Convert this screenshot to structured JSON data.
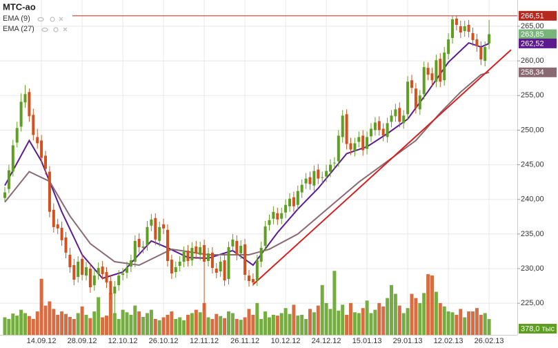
{
  "chart_data": {
    "type": "candlestick",
    "title": "МТС-ао",
    "categories": [
      null,
      null,
      null,
      null,
      null,
      null,
      null,
      null,
      null,
      "14.09.12",
      null,
      null,
      null,
      null,
      null,
      null,
      null,
      null,
      null,
      "28.09.12",
      null,
      null,
      null,
      null,
      null,
      null,
      null,
      null,
      null,
      "12.10.12",
      null,
      null,
      null,
      null,
      null,
      null,
      null,
      null,
      null,
      "26.10.12",
      null,
      null,
      null,
      null,
      null,
      null,
      null,
      null,
      null,
      "12.11.12",
      null,
      null,
      null,
      null,
      null,
      null,
      null,
      null,
      null,
      "26.11.12",
      null,
      null,
      null,
      null,
      null,
      null,
      null,
      null,
      null,
      "10.12.12",
      null,
      null,
      null,
      null,
      null,
      null,
      null,
      null,
      null,
      "24.12.12",
      null,
      null,
      null,
      null,
      null,
      null,
      null,
      null,
      null,
      "15.01.13",
      null,
      null,
      null,
      null,
      null,
      null,
      null,
      null,
      null,
      "29.01.13",
      null,
      null,
      null,
      null,
      null,
      null,
      null,
      null,
      null,
      "12.02.13",
      null,
      null,
      null,
      null,
      null,
      null,
      null,
      null,
      null,
      "26.02.13"
    ],
    "open": [
      240.2,
      241.5,
      244.0,
      248.2,
      250.5,
      254.0,
      255.5,
      252.2,
      249.0,
      248.5,
      246.3,
      244.0,
      238.5,
      236.4,
      235.9,
      234.5,
      232.0,
      230.5,
      228.8,
      231.4,
      229.0,
      230.0,
      227.6,
      229.2,
      230.3,
      229.5,
      228.2,
      226.4,
      227.6,
      229.1,
      229.4,
      230.3,
      231.0,
      234.3,
      233.0,
      233.4,
      236.2,
      237.3,
      234.0,
      236.4,
      235.6,
      231.3,
      229.5,
      230.4,
      231.0,
      232.6,
      231.2,
      233.2,
      232.0,
      233.4,
      231.1,
      232.3,
      230.0,
      229.6,
      231.2,
      228.5,
      233.2,
      234.0,
      232.2,
      233.5,
      229.0,
      228.5,
      228.3,
      231.0,
      233.3,
      236.3,
      237.2,
      238.0,
      237.2,
      238.1,
      239.0,
      240.3,
      239.2,
      241.0,
      242.3,
      243.2,
      242.0,
      244.3,
      243.1,
      243.3,
      244.0,
      245.2,
      245.5,
      249.0,
      252.3,
      248.1,
      247.0,
      248.3,
      249.2,
      247.3,
      249.1,
      250.0,
      251.3,
      250.2,
      249.0,
      251.2,
      252.0,
      253.2,
      251.0,
      252.3,
      257.2,
      256.0,
      253.0,
      255.2,
      259.0,
      258.2,
      257.0,
      260.3,
      257.2,
      261.0,
      263.3,
      266.1,
      265.0,
      264.3,
      265.2,
      264.0,
      263.1,
      262.0,
      260.0,
      262.5
    ],
    "high": [
      241.8,
      245.0,
      248.6,
      251.2,
      255.3,
      256.5,
      256.0,
      253.1,
      250.2,
      249.3,
      247.0,
      244.8,
      239.4,
      237.2,
      236.8,
      235.3,
      233.0,
      231.4,
      231.8,
      232.0,
      231.0,
      230.8,
      229.8,
      230.9,
      231.1,
      230.2,
      229.0,
      228.2,
      229.8,
      230.1,
      231.0,
      232.0,
      234.8,
      235.1,
      234.0,
      236.9,
      237.9,
      238.0,
      236.8,
      237.2,
      236.4,
      232.0,
      231.0,
      231.8,
      233.2,
      233.4,
      233.8,
      234.0,
      233.9,
      234.2,
      233.0,
      233.1,
      230.8,
      231.8,
      232.0,
      233.9,
      235.0,
      234.8,
      234.1,
      234.3,
      229.8,
      229.3,
      232.0,
      233.9,
      236.9,
      237.8,
      239.0,
      238.8,
      238.8,
      240.0,
      240.9,
      241.1,
      242.0,
      242.9,
      243.8,
      244.0,
      244.9,
      245.1,
      244.0,
      245.0,
      245.8,
      246.1,
      250.0,
      252.9,
      253.0,
      248.9,
      248.9,
      249.8,
      250.0,
      249.8,
      251.0,
      251.9,
      252.0,
      251.0,
      251.8,
      252.9,
      253.8,
      254.0,
      252.9,
      257.8,
      258.0,
      256.8,
      255.8,
      259.9,
      259.8,
      259.0,
      260.9,
      261.1,
      262.0,
      264.0,
      266.51,
      266.5,
      265.8,
      265.8,
      265.9,
      264.8,
      263.9,
      262.8,
      262.8,
      265.9
    ],
    "low": [
      239.6,
      240.9,
      243.3,
      247.5,
      249.8,
      253.2,
      251.2,
      248.5,
      247.3,
      245.2,
      243.6,
      237.4,
      235.2,
      235.0,
      233.3,
      231.5,
      229.4,
      227.6,
      228.0,
      228.3,
      228.3,
      226.5,
      226.8,
      228.4,
      228.4,
      227.2,
      225.5,
      223.4,
      226.8,
      228.3,
      228.6,
      229.5,
      230.2,
      232.3,
      232.2,
      232.6,
      235.4,
      233.4,
      233.2,
      235.0,
      230.3,
      228.5,
      228.7,
      229.6,
      230.2,
      230.3,
      230.4,
      231.4,
      231.2,
      224.0,
      230.3,
      229.3,
      228.6,
      228.8,
      227.5,
      227.7,
      232.4,
      231.2,
      231.4,
      228.3,
      227.4,
      227.5,
      227.5,
      230.2,
      232.5,
      235.5,
      236.4,
      236.3,
      236.4,
      237.3,
      238.2,
      238.2,
      238.4,
      240.2,
      241.5,
      241.4,
      241.2,
      242.2,
      242.3,
      242.5,
      243.2,
      244.4,
      244.7,
      248.2,
      247.2,
      246.4,
      246.2,
      247.5,
      246.3,
      246.5,
      248.3,
      249.2,
      249.2,
      248.4,
      248.2,
      250.4,
      251.2,
      250.4,
      250.2,
      251.5,
      255.3,
      252.4,
      252.2,
      254.4,
      257.2,
      256.4,
      256.2,
      256.2,
      256.4,
      260.2,
      262.5,
      264.4,
      263.3,
      263.5,
      263.4,
      262.2,
      261.3,
      259.4,
      259.2,
      261.7
    ],
    "close": [
      241.0,
      244.2,
      247.8,
      250.3,
      254.1,
      255.2,
      252.0,
      249.3,
      248.1,
      246.0,
      244.4,
      238.2,
      236.0,
      235.8,
      234.1,
      232.3,
      230.2,
      228.4,
      231.0,
      229.1,
      230.2,
      227.3,
      229.0,
      230.1,
      229.2,
      228.0,
      226.3,
      227.4,
      229.0,
      229.3,
      230.1,
      231.2,
      234.0,
      233.1,
      233.2,
      236.0,
      237.1,
      234.2,
      236.0,
      235.8,
      231.1,
      229.3,
      230.2,
      231.0,
      232.4,
      231.1,
      233.0,
      232.2,
      233.1,
      231.0,
      232.2,
      230.1,
      229.4,
      231.0,
      228.3,
      233.1,
      234.2,
      232.0,
      233.3,
      229.1,
      228.2,
      228.0,
      231.2,
      233.0,
      236.1,
      237.0,
      238.2,
      237.1,
      238.0,
      239.2,
      240.1,
      239.0,
      241.2,
      242.1,
      243.0,
      242.2,
      244.1,
      243.0,
      243.2,
      244.1,
      245.0,
      245.3,
      249.2,
      252.1,
      248.0,
      247.2,
      248.1,
      249.0,
      247.1,
      249.0,
      250.2,
      251.1,
      250.0,
      249.2,
      251.0,
      252.1,
      253.0,
      251.2,
      252.1,
      257.0,
      256.1,
      253.2,
      255.0,
      259.1,
      258.0,
      257.2,
      260.1,
      257.0,
      261.2,
      263.1,
      266.0,
      265.2,
      264.1,
      265.0,
      264.2,
      263.0,
      262.1,
      260.2,
      262.0,
      263.85
    ],
    "close_label": "263,85",
    "volume": {
      "values": [
        420,
        380,
        510,
        460,
        600,
        520,
        450,
        380,
        560,
        1340,
        700,
        800,
        620,
        480,
        560,
        500,
        430,
        380,
        520,
        680,
        480,
        400,
        560,
        900,
        420,
        460,
        1000,
        520,
        380,
        600,
        540,
        480,
        700,
        560,
        430,
        520,
        600,
        380,
        350,
        420,
        480,
        560,
        380,
        420,
        350,
        480,
        520,
        600,
        540,
        760,
        420,
        380,
        500,
        450,
        400,
        560,
        520,
        380,
        360,
        420,
        620,
        480,
        760,
        380,
        560,
        420,
        480,
        460,
        520,
        640,
        500,
        720,
        460,
        480,
        380,
        620,
        540,
        700,
        1190,
        760,
        620,
        1530,
        580,
        720,
        480,
        760,
        540,
        520,
        640,
        820,
        520,
        600,
        760,
        680,
        880,
        1190,
        980,
        700,
        520,
        640,
        980,
        880,
        760,
        1000,
        1450,
        1420,
        1030,
        760,
        680,
        560,
        540,
        480,
        620,
        420,
        560,
        560,
        640,
        480,
        520,
        378.0
      ],
      "last_label": "378,0 тыс",
      "lim": [
        0,
        8000
      ]
    },
    "colors": {
      "up": "#5e9f22",
      "down": "#d2521f"
    },
    "ylim": [
      220.43,
      268.79
    ],
    "yticks": [
      {
        "value": 225,
        "label": "225,00"
      },
      {
        "value": 230,
        "label": "230,00"
      },
      {
        "value": 235,
        "label": "235,00"
      },
      {
        "value": 240,
        "label": "240,00"
      },
      {
        "value": 245,
        "label": "245,00"
      },
      {
        "value": 250,
        "label": "250,00"
      },
      {
        "value": 255,
        "label": "255,00"
      },
      {
        "value": 260,
        "label": "260,00"
      },
      {
        "value": 265,
        "label": "265,00"
      }
    ],
    "grid": true,
    "series": [
      {
        "name": "EMA (9)",
        "color": "#5b1a8e",
        "x": [
          0,
          6,
          9,
          14,
          19,
          24,
          29,
          36,
          40,
          45,
          50,
          56,
          61,
          67,
          72,
          77,
          84,
          89,
          94,
          99,
          104,
          109,
          114,
          117,
          119
        ],
        "values": [
          242.0,
          248.5,
          245.5,
          238.2,
          232.0,
          228.6,
          229.5,
          234.0,
          233.0,
          231.6,
          231.5,
          232.6,
          230.5,
          235.2,
          238.6,
          241.6,
          246.6,
          247.6,
          249.5,
          251.6,
          255.6,
          259.8,
          262.6,
          262.0,
          262.52
        ],
        "last_label": "262,52"
      },
      {
        "name": "EMA (27)",
        "color": "#8a6a72",
        "x": [
          0,
          6,
          11,
          16,
          21,
          27,
          33,
          41,
          50,
          60,
          65,
          72,
          80,
          87,
          94,
          101,
          107,
          112,
          117,
          119
        ],
        "values": [
          239.6,
          244.0,
          242.6,
          237.6,
          233.6,
          231.0,
          230.5,
          232.8,
          232.0,
          232.0,
          232.8,
          235.0,
          239.0,
          242.5,
          245.5,
          248.5,
          252.5,
          255.5,
          258.0,
          258.34
        ],
        "last_label": "258,34"
      }
    ],
    "high_line": {
      "value": 266.51,
      "label": "266,51",
      "color": "#b52a1e"
    },
    "trend_line": {
      "x": [
        61,
        124.4
      ],
      "values": [
        227.7,
        261.6
      ],
      "color": "#d42020"
    }
  }
}
